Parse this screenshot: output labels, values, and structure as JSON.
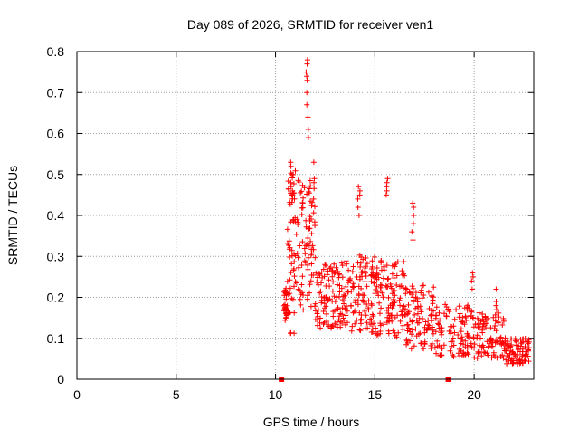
{
  "chart_data": {
    "type": "scatter",
    "title": "Day 089 of 2026, SRMTID for receiver ven1",
    "xlabel": "GPS time / hours",
    "ylabel": "SRMTID / TECUs",
    "xlim": [
      0,
      23
    ],
    "ylim": [
      0,
      0.8
    ],
    "xticks": [
      0,
      5,
      10,
      15,
      20
    ],
    "yticks": [
      0,
      0.1,
      0.2,
      0.3,
      0.4,
      0.5,
      0.6,
      0.7,
      0.8
    ],
    "xtick_labels": [
      "0",
      "5",
      "10",
      "15",
      "20"
    ],
    "ytick_labels": [
      "0",
      "0.1",
      "0.2",
      "0.3",
      "0.4",
      "0.5",
      "0.6",
      "0.7",
      "0.8"
    ],
    "grid": true,
    "marker": "+",
    "series_color": "#ff0000",
    "segments": [
      {
        "x0": 10.4,
        "x1": 10.6,
        "base": 0.17,
        "spread": 0.05,
        "count": 30
      },
      {
        "x0": 10.6,
        "x1": 11.1,
        "base": 0.25,
        "spread": 0.25,
        "count": 60
      },
      {
        "x0": 11.1,
        "x1": 12.0,
        "base": 0.28,
        "spread": 0.2,
        "count": 80
      },
      {
        "x0": 12.0,
        "x1": 13.5,
        "base": 0.18,
        "spread": 0.1,
        "count": 110
      },
      {
        "x0": 13.5,
        "x1": 15.0,
        "base": 0.18,
        "spread": 0.12,
        "count": 110
      },
      {
        "x0": 15.0,
        "x1": 16.5,
        "base": 0.17,
        "spread": 0.12,
        "count": 110
      },
      {
        "x0": 16.5,
        "x1": 18.0,
        "base": 0.13,
        "spread": 0.1,
        "count": 100
      },
      {
        "x0": 18.0,
        "x1": 20.0,
        "base": 0.1,
        "spread": 0.08,
        "count": 110
      },
      {
        "x0": 20.0,
        "x1": 21.5,
        "base": 0.09,
        "spread": 0.07,
        "count": 90
      },
      {
        "x0": 21.5,
        "x1": 22.8,
        "base": 0.06,
        "spread": 0.04,
        "count": 90
      }
    ],
    "peaks": [
      {
        "x": 11.6,
        "values": [
          0.78,
          0.77,
          0.75,
          0.74,
          0.73,
          0.7,
          0.67,
          0.64,
          0.61,
          0.59
        ]
      },
      {
        "x": 10.8,
        "values": [
          0.53,
          0.52,
          0.5,
          0.48,
          0.47,
          0.46,
          0.45
        ]
      },
      {
        "x": 11.9,
        "values": [
          0.53,
          0.49,
          0.48,
          0.44
        ]
      },
      {
        "x": 14.2,
        "values": [
          0.47,
          0.46,
          0.45,
          0.44,
          0.42,
          0.4
        ]
      },
      {
        "x": 15.6,
        "values": [
          0.49,
          0.48,
          0.47,
          0.46,
          0.45
        ]
      },
      {
        "x": 16.9,
        "values": [
          0.43,
          0.42,
          0.4,
          0.38,
          0.36,
          0.34
        ]
      },
      {
        "x": 19.9,
        "values": [
          0.26,
          0.25,
          0.24,
          0.22
        ]
      },
      {
        "x": 21.1,
        "values": [
          0.22,
          0.19,
          0.18,
          0.17
        ]
      }
    ],
    "gap_markers": [
      10.3,
      18.7
    ]
  }
}
